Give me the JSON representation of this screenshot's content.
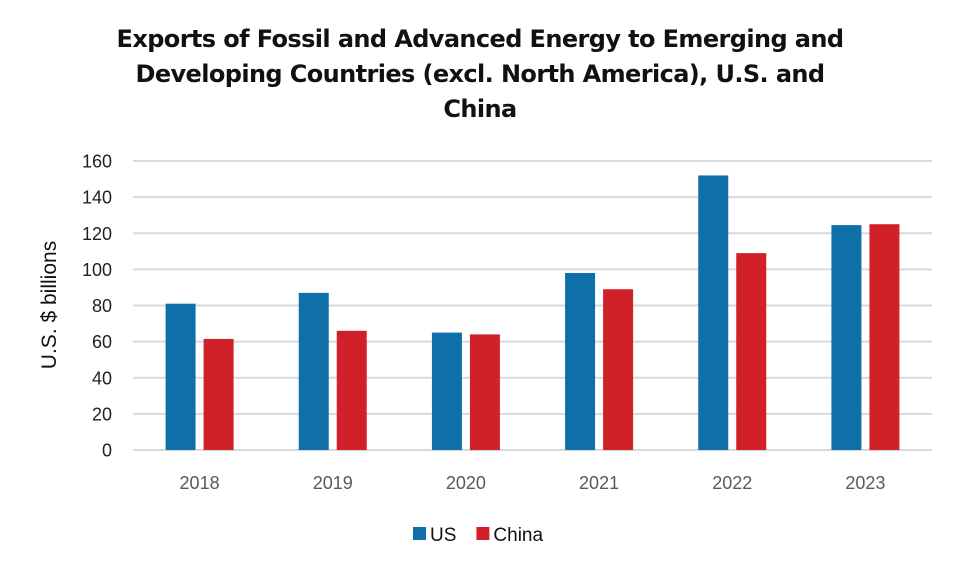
{
  "chart_data": {
    "type": "bar",
    "title": "Exports of Fossil and Advanced Energy to Emerging and Developing Countries (excl. North America), U.S. and China",
    "title_lines": [
      "Exports of Fossil and Advanced Energy to Emerging and",
      "Developing Countries (excl. North America), U.S. and",
      "China"
    ],
    "xlabel": "",
    "ylabel": "U.S. $ billions",
    "categories": [
      "2018",
      "2019",
      "2020",
      "2021",
      "2022",
      "2023"
    ],
    "series": [
      {
        "name": "US",
        "color": "#0f6fa8",
        "values": [
          81,
          87,
          65,
          98,
          152,
          124.5
        ]
      },
      {
        "name": "China",
        "color": "#d02128",
        "values": [
          61.5,
          66,
          64,
          89,
          109,
          125
        ]
      }
    ],
    "ylim": [
      0,
      160
    ],
    "yticks": [
      0,
      20,
      40,
      60,
      80,
      100,
      120,
      140,
      160
    ],
    "grid": true,
    "legend_position": "bottom-center"
  }
}
